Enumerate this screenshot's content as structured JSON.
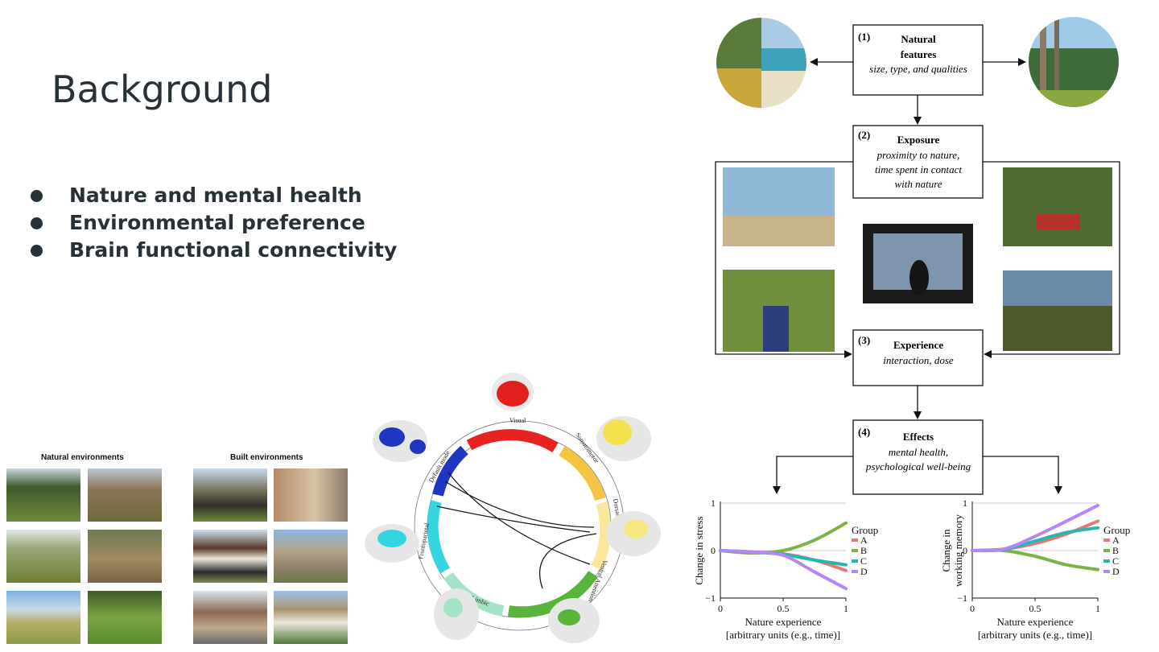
{
  "slide": {
    "title": "Background",
    "bullets": [
      "Nature and mental health",
      "Environmental preference",
      "Brain functional connectivity"
    ]
  },
  "environments": {
    "natural_label": "Natural environments",
    "built_label": "Built environments"
  },
  "networks": {
    "labels": [
      "Visual",
      "Somatomotor",
      "Dorsal Attention",
      "Ventral Attention",
      "Limbic",
      "Frontoparietal",
      "Default mode"
    ]
  },
  "model": {
    "boxes": [
      {
        "num": "(1)",
        "title_lines": [
          "Natural",
          "features"
        ],
        "italic_lines": [
          "size, type, and qualities"
        ]
      },
      {
        "num": "(2)",
        "title_lines": [
          "Exposure"
        ],
        "italic_lines": [
          "proximity to nature,",
          "time spent in contact",
          "with nature"
        ]
      },
      {
        "num": "(3)",
        "title_lines": [
          "Experience"
        ],
        "italic_lines": [
          "interaction, dose"
        ]
      },
      {
        "num": "(4)",
        "title_lines": [
          "Effects"
        ],
        "italic_lines": [
          "mental health,",
          "psychological well-being"
        ]
      }
    ]
  },
  "chart_data": [
    {
      "type": "line",
      "ylabel": "Change in stress",
      "xlabel": "Nature experience",
      "xlabel2": "[arbitrary units (e.g., time)]",
      "xlim": [
        0,
        1
      ],
      "ylim": [
        -1,
        1
      ],
      "xticks": [
        "0",
        "0.5",
        "1"
      ],
      "yticks": [
        "1",
        "0",
        "−1"
      ],
      "legend_title": "Group",
      "x": [
        0,
        0.25,
        0.5,
        0.75,
        1
      ],
      "series": [
        {
          "name": "A",
          "color": "#e8776f",
          "values": [
            0,
            -0.03,
            -0.07,
            -0.2,
            -0.42
          ]
        },
        {
          "name": "B",
          "color": "#7cb342",
          "values": [
            0,
            -0.05,
            0,
            0.22,
            0.58
          ]
        },
        {
          "name": "C",
          "color": "#26b5b3",
          "values": [
            0,
            -0.03,
            -0.08,
            -0.2,
            -0.3
          ]
        },
        {
          "name": "D",
          "color": "#b388f4",
          "values": [
            0,
            -0.03,
            -0.1,
            -0.45,
            -0.8
          ]
        }
      ]
    },
    {
      "type": "line",
      "ylabel": "Change in",
      "ylabel2": "working memory",
      "xlabel": "Nature experience",
      "xlabel2": "[arbitrary units (e.g., time)]",
      "xlim": [
        0,
        1
      ],
      "ylim": [
        -1,
        1
      ],
      "xticks": [
        "0",
        "0.5",
        "1"
      ],
      "yticks": [
        "1",
        "0",
        "−1"
      ],
      "legend_title": "Group",
      "x": [
        0,
        0.25,
        0.5,
        0.75,
        1
      ],
      "series": [
        {
          "name": "A",
          "color": "#e8776f",
          "values": [
            0,
            0.03,
            0.15,
            0.35,
            0.62
          ]
        },
        {
          "name": "B",
          "color": "#7cb342",
          "values": [
            0,
            0,
            -0.12,
            -0.3,
            -0.4
          ]
        },
        {
          "name": "C",
          "color": "#26b5b3",
          "values": [
            0,
            0.02,
            0.2,
            0.38,
            0.48
          ]
        },
        {
          "name": "D",
          "color": "#b388f4",
          "values": [
            0,
            0.03,
            0.3,
            0.62,
            0.95
          ]
        }
      ]
    }
  ]
}
